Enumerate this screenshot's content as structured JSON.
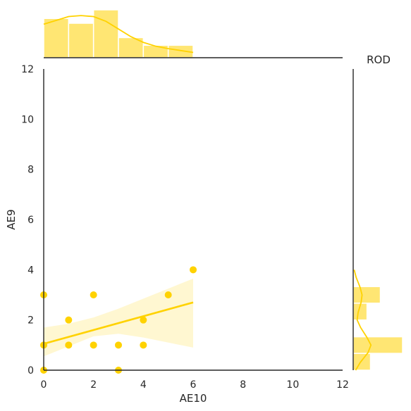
{
  "chart_data": {
    "type": "scatter",
    "title": "ROD",
    "xlabel": "AE10",
    "ylabel": "AE9",
    "xlim": [
      0,
      12
    ],
    "ylim": [
      0,
      12
    ],
    "xticks": [
      "0",
      "2",
      "4",
      "6",
      "8",
      "10",
      "12"
    ],
    "yticks": [
      "0",
      "2",
      "4",
      "6",
      "8",
      "10",
      "12"
    ],
    "grid": false,
    "color": "#FFD200",
    "points": [
      {
        "x": 0,
        "y": 3
      },
      {
        "x": 0,
        "y": 1
      },
      {
        "x": 0,
        "y": 0
      },
      {
        "x": 1,
        "y": 2
      },
      {
        "x": 1,
        "y": 1
      },
      {
        "x": 2,
        "y": 3
      },
      {
        "x": 2,
        "y": 1
      },
      {
        "x": 3,
        "y": 1
      },
      {
        "x": 3,
        "y": 0
      },
      {
        "x": 4,
        "y": 2
      },
      {
        "x": 4,
        "y": 1
      },
      {
        "x": 5,
        "y": 3
      },
      {
        "x": 6,
        "y": 4
      }
    ],
    "regression": {
      "x_range": [
        0,
        6
      ],
      "y_start": 1.05,
      "y_end": 2.7,
      "ci_lower": [
        [
          0,
          0.55
        ],
        [
          1,
          0.95
        ],
        [
          2,
          1.35
        ],
        [
          3,
          1.45
        ],
        [
          4,
          1.3
        ],
        [
          5,
          1.1
        ],
        [
          6,
          0.9
        ]
      ],
      "ci_upper": [
        [
          0,
          1.7
        ],
        [
          1,
          1.85
        ],
        [
          2,
          2.1
        ],
        [
          3,
          2.45
        ],
        [
          4,
          2.85
        ],
        [
          5,
          3.25
        ],
        [
          6,
          3.65
        ]
      ]
    },
    "x_marginal": {
      "bin_edges": [
        0,
        1,
        2,
        3,
        4,
        5,
        6
      ],
      "heights": [
        0.82,
        0.72,
        1.0,
        0.42,
        0.26,
        0.26
      ],
      "kde": [
        [
          0,
          0.7
        ],
        [
          0.5,
          0.78
        ],
        [
          1,
          0.86
        ],
        [
          1.5,
          0.88
        ],
        [
          2,
          0.86
        ],
        [
          2.5,
          0.76
        ],
        [
          3,
          0.6
        ],
        [
          3.5,
          0.44
        ],
        [
          4,
          0.32
        ],
        [
          4.5,
          0.24
        ],
        [
          5,
          0.19
        ],
        [
          5.5,
          0.15
        ],
        [
          6,
          0.11
        ]
      ]
    },
    "y_marginal": {
      "bin_edges": [
        0,
        0.67,
        1.33,
        2.0,
        2.67,
        3.33,
        4.0
      ],
      "heights": [
        0.35,
        1.0,
        0.0,
        0.28,
        0.55,
        0.0
      ],
      "kde": [
        [
          0,
          0.05
        ],
        [
          0.3,
          0.14
        ],
        [
          0.7,
          0.3
        ],
        [
          1.0,
          0.36
        ],
        [
          1.3,
          0.28
        ],
        [
          1.7,
          0.15
        ],
        [
          2.0,
          0.08
        ],
        [
          2.3,
          0.1
        ],
        [
          2.7,
          0.16
        ],
        [
          3.0,
          0.18
        ],
        [
          3.3,
          0.14
        ],
        [
          3.7,
          0.06
        ],
        [
          4.0,
          0.02
        ]
      ]
    }
  }
}
